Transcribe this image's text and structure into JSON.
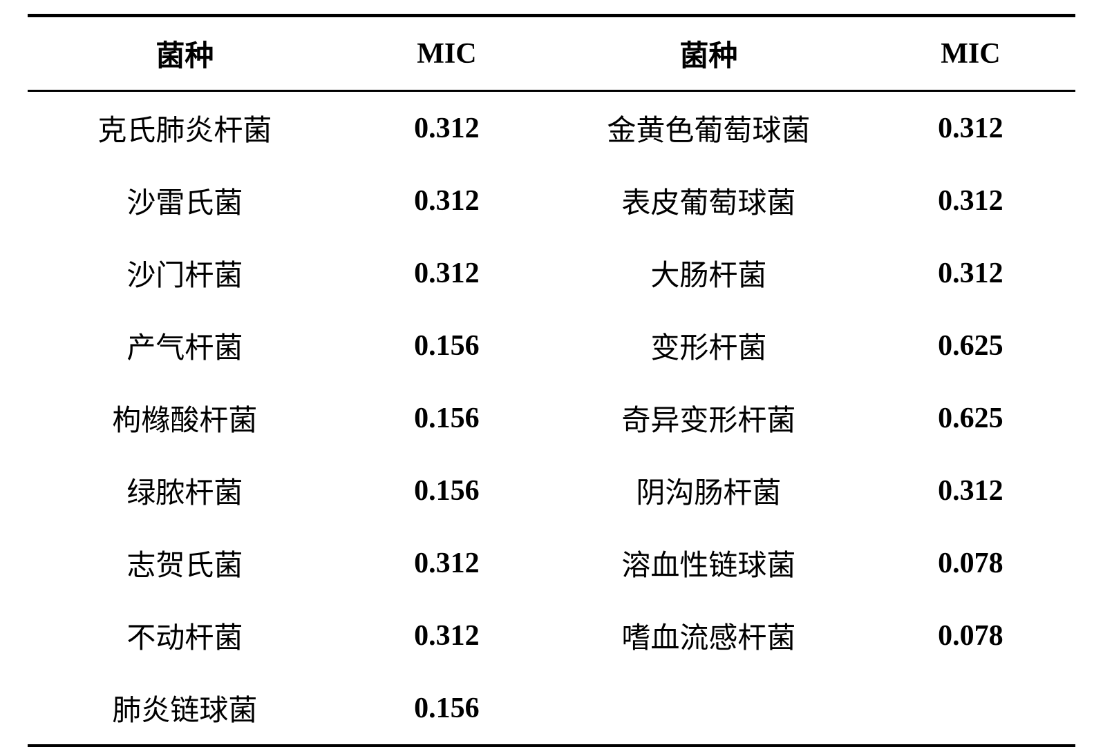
{
  "table": {
    "headers": {
      "species1": "菌种",
      "mic1": "MIC",
      "species2": "菌种",
      "mic2": "MIC"
    },
    "rows": [
      {
        "species1": "克氏肺炎杆菌",
        "mic1": "0.312",
        "species2": "金黄色葡萄球菌",
        "mic2": "0.312"
      },
      {
        "species1": "沙雷氏菌",
        "mic1": "0.312",
        "species2": "表皮葡萄球菌",
        "mic2": "0.312"
      },
      {
        "species1": "沙门杆菌",
        "mic1": "0.312",
        "species2": "大肠杆菌",
        "mic2": "0.312"
      },
      {
        "species1": "产气杆菌",
        "mic1": "0.156",
        "species2": "变形杆菌",
        "mic2": "0.625"
      },
      {
        "species1": "枸橼酸杆菌",
        "mic1": "0.156",
        "species2": "奇异变形杆菌",
        "mic2": "0.625"
      },
      {
        "species1": "绿脓杆菌",
        "mic1": "0.156",
        "species2": "阴沟肠杆菌",
        "mic2": "0.312"
      },
      {
        "species1": "志贺氏菌",
        "mic1": "0.312",
        "species2": "溶血性链球菌",
        "mic2": "0.078"
      },
      {
        "species1": "不动杆菌",
        "mic1": "0.312",
        "species2": "嗜血流感杆菌",
        "mic2": "0.078"
      },
      {
        "species1": "肺炎链球菌",
        "mic1": "0.156",
        "species2": "",
        "mic2": ""
      }
    ],
    "styling": {
      "background_color": "#ffffff",
      "text_color": "#000000",
      "border_color": "#000000",
      "top_border_width": 5,
      "header_bottom_border_width": 3,
      "bottom_border_width": 4,
      "header_fontsize": 42,
      "cell_fontsize": 42,
      "cell_padding_vertical": 22,
      "species_font_family": "SimSun",
      "mic_font_family": "Times New Roman",
      "mic_font_weight": "bold",
      "col_widths": [
        "30%",
        "20%",
        "30%",
        "20%"
      ]
    }
  }
}
